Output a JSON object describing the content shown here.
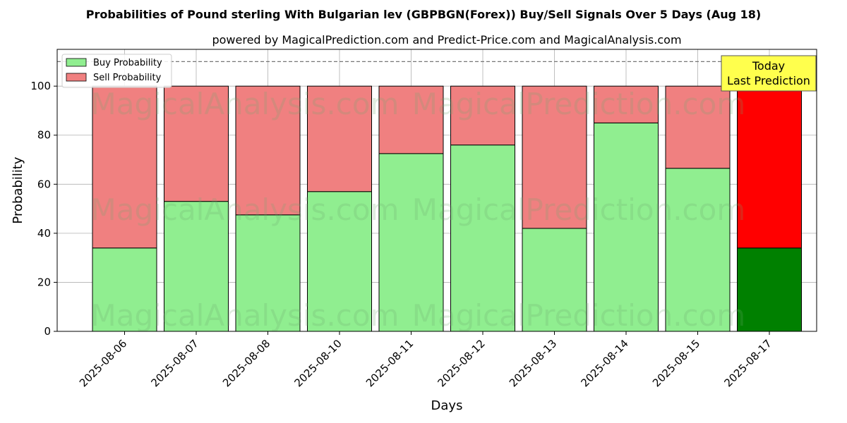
{
  "chart_data": {
    "type": "bar",
    "stacked": true,
    "title": "Probabilities of Pound sterling With Bulgarian lev (GBPBGN(Forex)) Buy/Sell Signals Over 5 Days (Aug 18)",
    "subtitle": "powered by MagicalPrediction.com and Predict-Price.com and MagicalAnalysis.com",
    "xlabel": "Days",
    "ylabel": "Probability",
    "ylim": [
      0,
      115
    ],
    "yticks": [
      0,
      20,
      40,
      60,
      80,
      100
    ],
    "reference_line": 110,
    "grid": true,
    "legend_position": "top-left",
    "categories": [
      "2025-08-06",
      "2025-08-07",
      "2025-08-08",
      "2025-08-10",
      "2025-08-11",
      "2025-08-12",
      "2025-08-13",
      "2025-08-14",
      "2025-08-15",
      "2025-08-17"
    ],
    "series": [
      {
        "name": "Buy Probability",
        "color": "#90ee90",
        "highlight_color": "#008000",
        "values": [
          34,
          53,
          47.5,
          57,
          72.5,
          76,
          42,
          85,
          66.5,
          34
        ]
      },
      {
        "name": "Sell Probability",
        "color": "#f08080",
        "highlight_color": "#ff0000",
        "values": [
          66,
          47,
          52.5,
          43,
          27.5,
          24,
          58,
          15,
          33.5,
          66
        ]
      }
    ],
    "highlight_index": 9,
    "annotation": {
      "line1": "Today",
      "line2": "Last Prediction",
      "color": "#ffff4d"
    },
    "watermarks": [
      "MagicalAnalysis.com",
      "MagicalPrediction.com"
    ]
  }
}
